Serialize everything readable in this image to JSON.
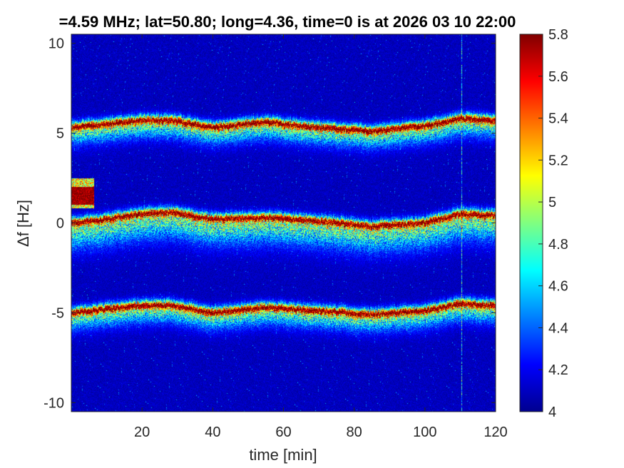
{
  "chart_data": {
    "type": "heatmap",
    "title": "=4.59 MHz;  lat=50.80; long=4.36, time=0 is at 2026 03 10 22:00",
    "xlabel": "time [min]",
    "ylabel": "Δf [Hz]",
    "xlim": [
      0,
      120
    ],
    "ylim": [
      -10.5,
      10.5
    ],
    "xticks": [
      "20",
      "40",
      "60",
      "80",
      "100",
      "120"
    ],
    "yticks": [
      "10",
      "5",
      "0",
      "-5",
      "-10"
    ],
    "colorbar": {
      "min": 4,
      "max": 5.8,
      "ticks": [
        "5.8",
        "5.6",
        "5.4",
        "5.2",
        "5",
        "4.8",
        "4.6",
        "4.4",
        "4.2",
        "4"
      ],
      "colormap": "jet"
    },
    "background_level": 4.05,
    "series": [
      {
        "time": [
          0,
          10,
          20,
          28,
          40,
          55,
          70,
          85,
          100,
          110,
          120
        ],
        "df": [
          5.3,
          5.5,
          5.7,
          5.7,
          5.3,
          5.6,
          5.3,
          5.1,
          5.4,
          5.8,
          5.7
        ]
      },
      {
        "time": [
          0,
          10,
          20,
          28,
          40,
          55,
          70,
          85,
          100,
          110,
          120
        ],
        "df": [
          0.0,
          0.2,
          0.5,
          0.6,
          0.2,
          0.3,
          0.1,
          -0.2,
          0.0,
          0.5,
          0.4
        ]
      },
      {
        "time": [
          0,
          10,
          20,
          28,
          40,
          55,
          70,
          85,
          100,
          110,
          120
        ],
        "df": [
          -5.0,
          -4.8,
          -4.6,
          -4.6,
          -5.0,
          -4.7,
          -4.9,
          -5.1,
          -4.9,
          -4.5,
          -4.6
        ]
      }
    ],
    "early_patch": {
      "time": [
        0,
        6.5
      ],
      "df": [
        0.8,
        2.5
      ]
    },
    "vertical_stripe_time": 110.5
  }
}
